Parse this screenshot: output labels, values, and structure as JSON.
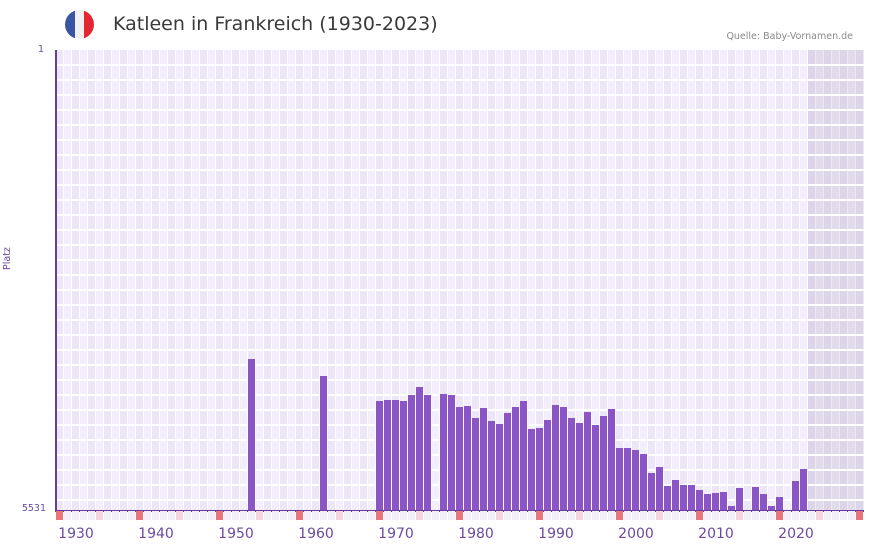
{
  "header": {
    "title": "Katleen in Frankreich (1930-2023)",
    "source": "Quelle: Baby-Vornamen.de",
    "flag": {
      "name": "france-flag-icon",
      "colors": [
        "#3b55a5",
        "#f1f1f1",
        "#e3262f"
      ]
    }
  },
  "axes": {
    "y_top_label": "1",
    "y_bottom_label": "5531",
    "y_title": "Platz",
    "x_labels": [
      "1930",
      "1940",
      "1950",
      "1960",
      "1970",
      "1980",
      "1990",
      "2000",
      "2010",
      "2020"
    ]
  },
  "colors": {
    "bar": "#8b55c6",
    "axis": "#6a3c99",
    "grid_bg_a": "#f2eefb",
    "grid_bg_b": "#ece6f7",
    "tick_decade": "#e7757a",
    "tick_mid": "#f5d6de",
    "tick_other": "#f3eff9"
  },
  "chart_data": {
    "type": "bar",
    "title": "Katleen in Frankreich (1930-2023)",
    "xlabel": "",
    "ylabel": "Platz",
    "y_inverted": true,
    "ylim": [
      1,
      5531
    ],
    "x_range": [
      1928,
      2028
    ],
    "shaded_from_year": 2022,
    "grid": true,
    "legend": null,
    "categories": [
      1952,
      1961,
      1968,
      1969,
      1970,
      1971,
      1972,
      1973,
      1974,
      1976,
      1977,
      1978,
      1979,
      1980,
      1981,
      1982,
      1983,
      1984,
      1985,
      1986,
      1987,
      1988,
      1989,
      1990,
      1991,
      1992,
      1993,
      1994,
      1995,
      1996,
      1997,
      1998,
      1999,
      2000,
      2001,
      2002,
      2003,
      2004,
      2005,
      2006,
      2007,
      2008,
      2009,
      2010,
      2011,
      2012,
      2013,
      2015,
      2016,
      2017,
      2018,
      2020,
      2021
    ],
    "values": [
      3716,
      3920,
      4221,
      4209,
      4209,
      4221,
      4148,
      4052,
      4148,
      4136,
      4148,
      4293,
      4281,
      4425,
      4305,
      4461,
      4497,
      4365,
      4293,
      4221,
      4557,
      4545,
      4449,
      4269,
      4293,
      4425,
      4485,
      4353,
      4509,
      4401,
      4317,
      4786,
      4786,
      4810,
      4858,
      5087,
      5015,
      5243,
      5171,
      5231,
      5231,
      5291,
      5339,
      5327,
      5315,
      5483,
      5267,
      5255,
      5339,
      5483,
      5375,
      5183,
      5039
    ]
  }
}
